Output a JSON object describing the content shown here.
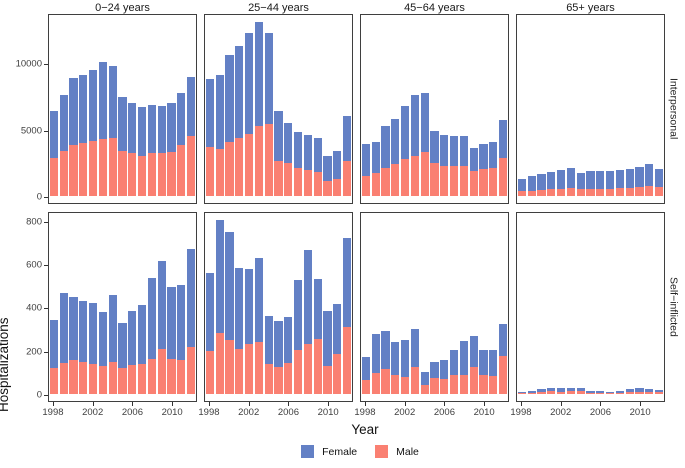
{
  "chart_data": {
    "type": "bar",
    "stacked": true,
    "title": "",
    "xlabel": "Year",
    "ylabel": "Hospitalizations",
    "x": [
      1998,
      1999,
      2000,
      2001,
      2002,
      2003,
      2004,
      2005,
      2006,
      2007,
      2008,
      2009,
      2010,
      2011,
      2012
    ],
    "x_ticks": [
      1998,
      2002,
      2006,
      2010
    ],
    "facet_cols": [
      "0−24 years",
      "25−44 years",
      "45−64 years",
      "65+ years"
    ],
    "legend": [
      {
        "label": "Female",
        "color": "#6380C5"
      },
      {
        "label": "Male",
        "color": "#FA8072"
      }
    ],
    "grid": false,
    "legend_position": "bottom",
    "rows": [
      {
        "label": "Interpersonal",
        "ymax": 13725,
        "yticks": [
          0,
          5000,
          10000
        ],
        "panels": [
          {
            "age": "0−24 years",
            "male": [
              2900,
              3400,
              3850,
              4000,
              4150,
              4300,
              4400,
              3400,
              3250,
              3050,
              3250,
              3250,
              3300,
              3850,
              4500
            ],
            "female": [
              3500,
              4200,
              5050,
              5100,
              5350,
              5800,
              5400,
              4100,
              3750,
              3650,
              3650,
              3550,
              3700,
              3950,
              4500
            ]
          },
          {
            "age": "25−44 years",
            "male": [
              3700,
              3550,
              4100,
              4350,
              4650,
              5250,
              5400,
              2650,
              2500,
              2100,
              1950,
              1800,
              1150,
              1250,
              2650
            ],
            "female": [
              5100,
              5600,
              6500,
              6950,
              7650,
              7850,
              6900,
              3750,
              3000,
              2700,
              2650,
              2600,
              1850,
              2150,
              3350
            ]
          },
          {
            "age": "45−64 years",
            "male": [
              1500,
              1700,
              2150,
              2400,
              2800,
              3000,
              3300,
              2500,
              2300,
              2300,
              2250,
              1900,
              2000,
              2100,
              2900
            ],
            "female": [
              2400,
              2400,
              3150,
              3400,
              4000,
              4600,
              4500,
              2400,
              2300,
              2250,
              2250,
              1700,
              1900,
              2000,
              2800
            ]
          },
          {
            "age": "65+ years",
            "male": [
              350,
              400,
              450,
              500,
              550,
              600,
              500,
              525,
              550,
              550,
              575,
              600,
              700,
              750,
              650
            ],
            "female": [
              950,
              1100,
              1200,
              1300,
              1450,
              1500,
              1250,
              1325,
              1350,
              1350,
              1425,
              1450,
              1525,
              1650,
              1400
            ]
          }
        ]
      },
      {
        "label": "Self−inflicted",
        "ymax": 840,
        "yticks": [
          0,
          200,
          400,
          600,
          800
        ],
        "panels": [
          {
            "age": "0−24 years",
            "male": [
              120,
              145,
              155,
              150,
              140,
              130,
              150,
              120,
              135,
              140,
              160,
              210,
              160,
              155,
              215
            ],
            "female": [
              220,
              320,
              295,
              280,
              280,
              250,
              305,
              210,
              250,
              270,
              375,
              405,
              335,
              350,
              455
            ]
          },
          {
            "age": "25−44 years",
            "male": [
              200,
              280,
              250,
              210,
              230,
              240,
              140,
              125,
              145,
              205,
              230,
              255,
              130,
              185,
              310
            ],
            "female": [
              360,
              525,
              500,
              370,
              345,
              390,
              220,
              210,
              210,
              320,
              435,
              275,
              255,
              230,
              410
            ]
          },
          {
            "age": "45−64 years",
            "male": [
              65,
              95,
              115,
              90,
              80,
              125,
              40,
              75,
              70,
              90,
              90,
              125,
              90,
              85,
              175
            ],
            "female": [
              105,
              180,
              175,
              150,
              170,
              175,
              60,
              75,
              85,
              115,
              155,
              145,
              115,
              120,
              150
            ]
          },
          {
            "age": "65+ years",
            "male": [
              3,
              6,
              10,
              12,
              11,
              12,
              12,
              5,
              5,
              3,
              6,
              9,
              11,
              10,
              8
            ],
            "female": [
              5,
              9,
              15,
              18,
              17,
              18,
              18,
              7,
              7,
              5,
              9,
              13,
              17,
              15,
              12
            ]
          }
        ]
      }
    ]
  }
}
